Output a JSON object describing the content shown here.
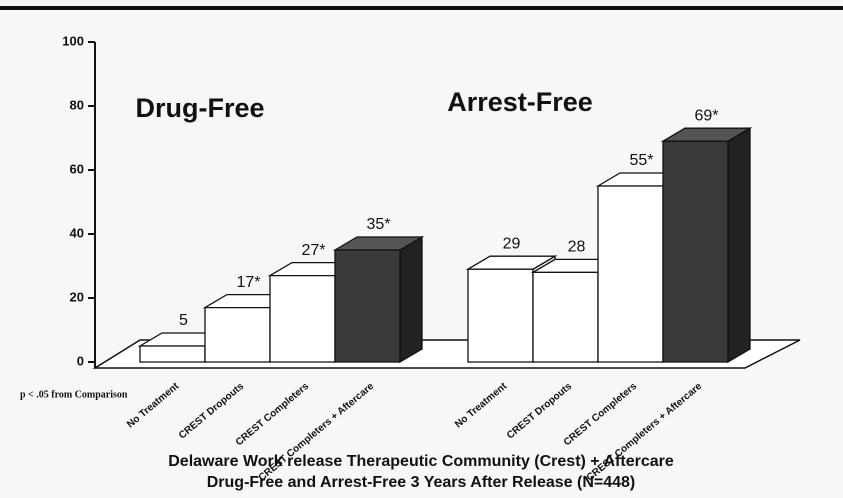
{
  "chart_data": {
    "type": "bar3d",
    "title": "Delaware Work release Therapeutic Community (Crest) + Aftercare",
    "subtitle": "Drug-Free and Arrest-Free 3 Years After Release (N=448)",
    "note": "p < .05 from Comparison",
    "categories": [
      "No Treatment",
      "CREST Dropouts",
      "CREST Completers",
      "CREST Completers + Aftercare"
    ],
    "colors": [
      "#ffffff",
      "#ffffff",
      "#ffffff",
      "#3a3a3a"
    ],
    "series": [
      {
        "name": "Drug-Free",
        "values": [
          5,
          17,
          27,
          35
        ],
        "value_labels": [
          "5",
          "17*",
          "27*",
          "35*"
        ]
      },
      {
        "name": "Arrest-Free",
        "values": [
          29,
          28,
          55,
          69
        ],
        "value_labels": [
          "29",
          "28",
          "55*",
          "69*"
        ]
      }
    ],
    "ylim": [
      0,
      100
    ],
    "yticks": [
      0,
      20,
      40,
      60,
      80,
      100
    ]
  }
}
